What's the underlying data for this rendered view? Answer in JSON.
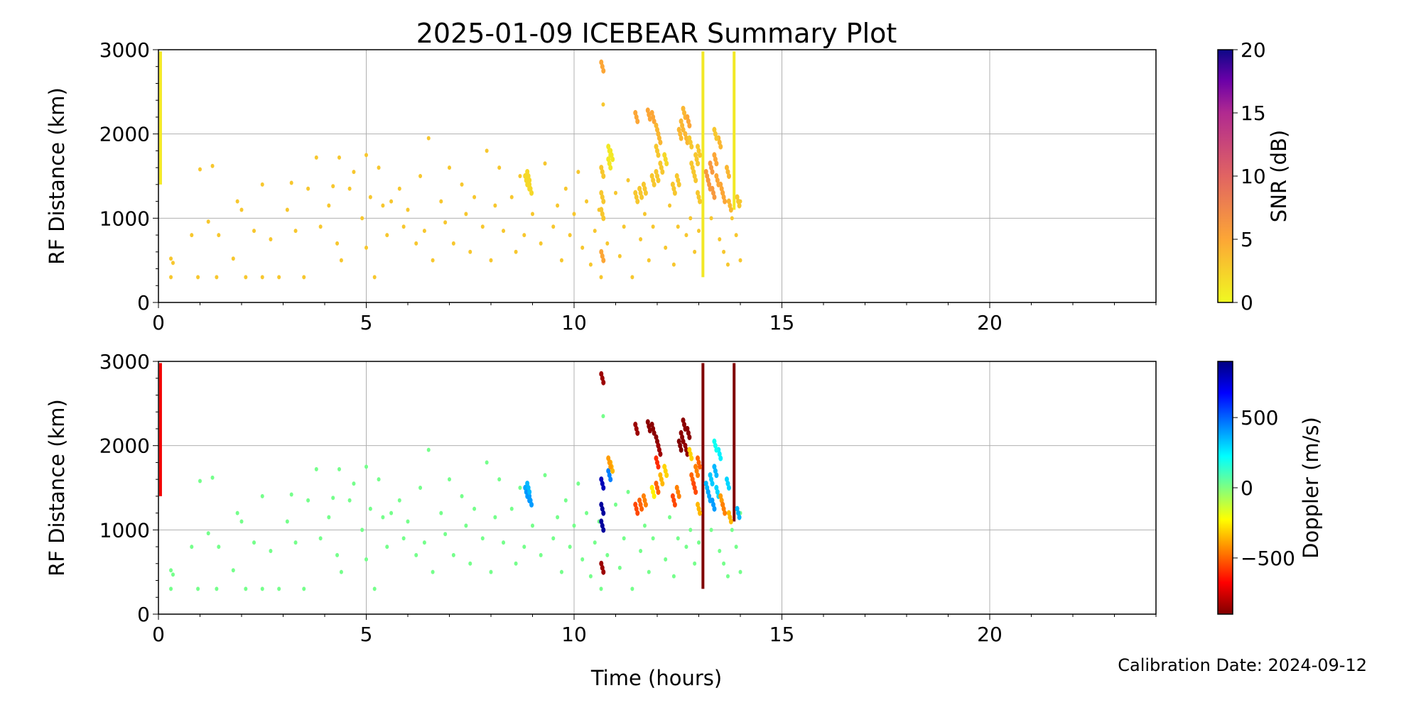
{
  "chart_data": {
    "type": "scatter",
    "title": "2025-01-09 ICEBEAR Summary Plot",
    "xlabel": "Time (hours)",
    "footer": "Calibration Date: 2024-09-12",
    "xlim": [
      0,
      24
    ],
    "x_ticks": [
      0,
      5,
      10,
      15,
      20
    ],
    "grid": true,
    "panels": [
      {
        "name": "snr",
        "ylabel": "RF Distance (km)",
        "ylim": [
          0,
          3000
        ],
        "y_ticks": [
          0,
          1000,
          2000,
          3000
        ],
        "color_by": "snr",
        "colorbar": {
          "label": "SNR (dB)",
          "range": [
            0,
            20
          ],
          "ticks": [
            0,
            5,
            10,
            15,
            20
          ],
          "colormap": "plasma_r"
        }
      },
      {
        "name": "doppler",
        "ylabel": "RF Distance (km)",
        "ylim": [
          0,
          3000
        ],
        "y_ticks": [
          0,
          1000,
          2000,
          3000
        ],
        "color_by": "doppler",
        "colorbar": {
          "label": "Doppler (m/s)",
          "range": [
            -900,
            900
          ],
          "ticks": [
            -500,
            0,
            500
          ],
          "tick_labels": [
            "−500",
            "0",
            "500"
          ],
          "colormap": "jet"
        }
      }
    ],
    "columns": [
      "time_hours",
      "rf_distance_km",
      "snr_db",
      "doppler_ms"
    ],
    "background_points": [
      [
        0.3,
        520
      ],
      [
        0.35,
        470
      ],
      [
        0.3,
        300
      ],
      [
        0.8,
        800
      ],
      [
        0.95,
        300
      ],
      [
        1.0,
        1580
      ],
      [
        1.2,
        960
      ],
      [
        1.3,
        1620
      ],
      [
        1.4,
        300
      ],
      [
        1.45,
        800
      ],
      [
        1.8,
        520
      ],
      [
        1.9,
        1200
      ],
      [
        2.0,
        1100
      ],
      [
        2.1,
        300
      ],
      [
        2.3,
        850
      ],
      [
        2.5,
        300
      ],
      [
        2.5,
        1400
      ],
      [
        2.7,
        750
      ],
      [
        2.9,
        300
      ],
      [
        3.1,
        1100
      ],
      [
        3.2,
        1420
      ],
      [
        3.3,
        850
      ],
      [
        3.5,
        300
      ],
      [
        3.6,
        1350
      ],
      [
        3.8,
        1720
      ],
      [
        3.9,
        900
      ],
      [
        4.1,
        1150
      ],
      [
        4.2,
        1380
      ],
      [
        4.3,
        700
      ],
      [
        4.35,
        1720
      ],
      [
        4.4,
        500
      ],
      [
        4.6,
        1350
      ],
      [
        4.7,
        1550
      ],
      [
        4.9,
        1000
      ],
      [
        5.0,
        1750
      ],
      [
        5.0,
        650
      ],
      [
        5.1,
        1250
      ],
      [
        5.2,
        300
      ],
      [
        5.3,
        1600
      ],
      [
        5.4,
        1150
      ],
      [
        5.5,
        800
      ],
      [
        5.6,
        1200
      ],
      [
        5.8,
        1350
      ],
      [
        5.9,
        900
      ],
      [
        6.0,
        1100
      ],
      [
        6.2,
        700
      ],
      [
        6.3,
        1500
      ],
      [
        6.4,
        850
      ],
      [
        6.5,
        1950
      ],
      [
        6.6,
        500
      ],
      [
        6.8,
        1200
      ],
      [
        6.9,
        950
      ],
      [
        7.0,
        1600
      ],
      [
        7.1,
        700
      ],
      [
        7.3,
        1400
      ],
      [
        7.4,
        1050
      ],
      [
        7.5,
        600
      ],
      [
        7.6,
        1250
      ],
      [
        7.8,
        900
      ],
      [
        7.9,
        1800
      ],
      [
        8.0,
        500
      ],
      [
        8.1,
        1150
      ],
      [
        8.2,
        1600
      ],
      [
        8.3,
        850
      ],
      [
        8.5,
        1250
      ],
      [
        8.6,
        600
      ],
      [
        8.7,
        1500
      ],
      [
        8.8,
        800
      ],
      [
        9.0,
        1050
      ],
      [
        9.2,
        700
      ],
      [
        9.3,
        1650
      ],
      [
        9.5,
        900
      ],
      [
        9.6,
        1150
      ],
      [
        9.7,
        500
      ],
      [
        9.8,
        1350
      ],
      [
        9.9,
        800
      ],
      [
        10.0,
        1050
      ],
      [
        10.1,
        1550
      ],
      [
        10.2,
        650
      ],
      [
        10.3,
        1200
      ],
      [
        10.4,
        450
      ],
      [
        10.5,
        850
      ],
      [
        10.6,
        1100
      ],
      [
        10.65,
        300
      ],
      [
        10.7,
        2350
      ],
      [
        10.8,
        700
      ],
      [
        11.0,
        1300
      ],
      [
        11.1,
        550
      ],
      [
        11.2,
        900
      ],
      [
        11.3,
        1450
      ],
      [
        11.4,
        300
      ],
      [
        11.6,
        750
      ],
      [
        11.7,
        1050
      ],
      [
        11.8,
        500
      ],
      [
        11.9,
        900
      ],
      [
        12.2,
        650
      ],
      [
        12.3,
        1150
      ],
      [
        12.4,
        450
      ],
      [
        12.5,
        900
      ],
      [
        12.7,
        800
      ],
      [
        12.8,
        1000
      ],
      [
        12.9,
        600
      ],
      [
        13.0,
        850
      ],
      [
        13.3,
        1000
      ],
      [
        13.5,
        750
      ],
      [
        13.6,
        600
      ],
      [
        13.7,
        450
      ],
      [
        13.8,
        1000
      ],
      [
        13.9,
        800
      ],
      [
        14.0,
        500
      ],
      [
        14.0,
        1200
      ]
    ],
    "background_snr": 3,
    "background_doppler": 20,
    "cluster_points": [
      [
        8.85,
        1450,
        2,
        380
      ],
      [
        8.9,
        1400,
        2,
        420
      ],
      [
        8.95,
        1350,
        2,
        400
      ],
      [
        8.9,
        1500,
        2,
        350
      ],
      [
        10.68,
        1050,
        3,
        850
      ],
      [
        10.68,
        1250,
        3,
        850
      ],
      [
        10.68,
        1550,
        3,
        800
      ],
      [
        10.68,
        2800,
        5,
        -850
      ],
      [
        10.68,
        550,
        5,
        -850
      ],
      [
        10.85,
        1650,
        1,
        450
      ],
      [
        10.9,
        1750,
        1,
        -350
      ],
      [
        10.85,
        1800,
        1,
        -400
      ],
      [
        11.5,
        1250,
        3,
        -550
      ],
      [
        11.6,
        1300,
        3,
        -500
      ],
      [
        11.7,
        1350,
        3,
        -450
      ],
      [
        11.5,
        2200,
        5,
        -850
      ],
      [
        11.8,
        2230,
        5,
        -880
      ],
      [
        11.9,
        2200,
        5,
        -880
      ],
      [
        12.0,
        2050,
        4,
        -880
      ],
      [
        12.05,
        1950,
        4,
        -850
      ],
      [
        12.0,
        1800,
        3,
        -600
      ],
      [
        12.1,
        1600,
        3,
        -350
      ],
      [
        12.0,
        1500,
        3,
        -500
      ],
      [
        11.9,
        1450,
        3,
        -250
      ],
      [
        12.2,
        1700,
        2,
        -300
      ],
      [
        12.4,
        1350,
        3,
        -550
      ],
      [
        12.5,
        1450,
        3,
        -450
      ],
      [
        12.55,
        2000,
        4,
        -900
      ],
      [
        12.6,
        2100,
        4,
        -880
      ],
      [
        12.65,
        2250,
        4,
        -880
      ],
      [
        12.7,
        1950,
        4,
        -870
      ],
      [
        12.75,
        2150,
        5,
        -880
      ],
      [
        12.8,
        1900,
        3,
        -300
      ],
      [
        12.85,
        1600,
        3,
        -500
      ],
      [
        12.9,
        1500,
        3,
        -550
      ],
      [
        12.95,
        1700,
        3,
        -450
      ],
      [
        13.0,
        1250,
        3,
        -350
      ],
      [
        13.0,
        1800,
        3,
        -500
      ],
      [
        13.2,
        1500,
        6,
        350
      ],
      [
        13.25,
        1400,
        6,
        380
      ],
      [
        13.3,
        1600,
        6,
        320
      ],
      [
        13.35,
        1300,
        6,
        400
      ],
      [
        13.4,
        1700,
        5,
        350
      ],
      [
        13.45,
        1450,
        5,
        300
      ],
      [
        13.5,
        1900,
        4,
        250
      ],
      [
        13.55,
        1350,
        5,
        -400
      ],
      [
        13.6,
        1250,
        5,
        -450
      ],
      [
        13.7,
        1550,
        4,
        300
      ],
      [
        13.75,
        1150,
        4,
        -350
      ],
      [
        13.95,
        1200,
        3,
        350
      ],
      [
        13.4,
        2000,
        3,
        200
      ]
    ],
    "streaks": [
      {
        "time_hours": 0.05,
        "range_km": [
          1400,
          2980
        ],
        "snr_db": 1,
        "doppler_ms": -700
      },
      {
        "time_hours": 13.1,
        "range_km": [
          300,
          2980
        ],
        "snr_db": 1,
        "doppler_ms": -900
      },
      {
        "time_hours": 13.85,
        "range_km": [
          1100,
          2980
        ],
        "snr_db": 1,
        "doppler_ms": -900
      }
    ]
  }
}
